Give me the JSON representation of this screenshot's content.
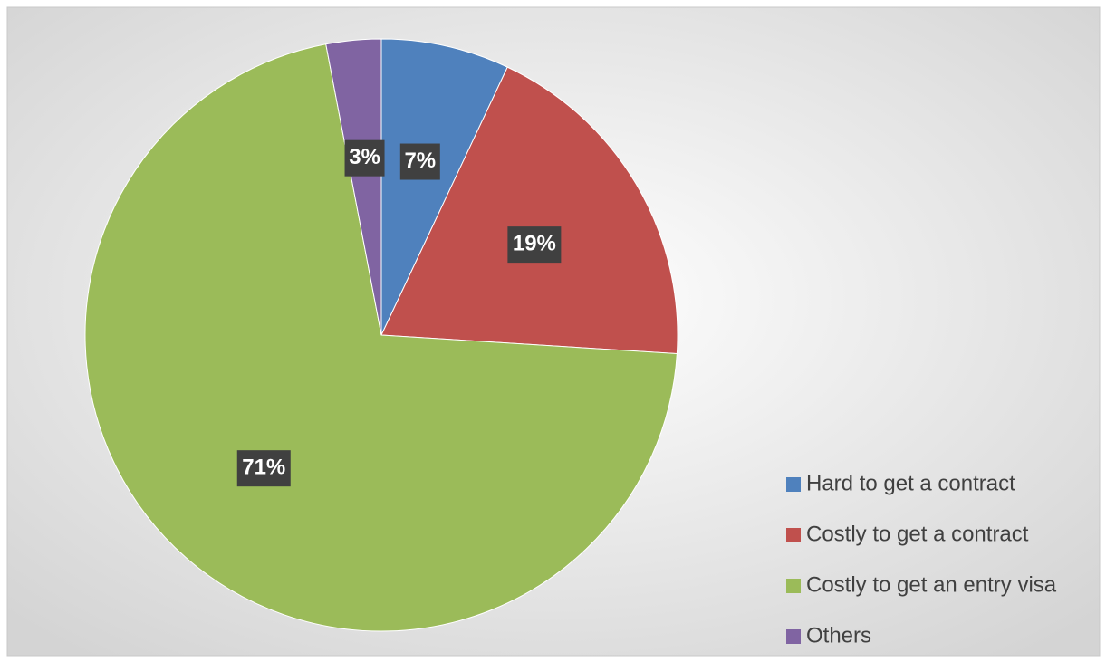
{
  "chart_data": {
    "type": "pie",
    "categories": [
      "Hard to get a contract",
      "Costly to get a contract",
      "Costly to get an entry visa",
      "Others"
    ],
    "values": [
      7,
      19,
      71,
      3
    ],
    "value_labels": [
      "7%",
      "19%",
      "71%",
      "3%"
    ],
    "colors": [
      "#4f81bd",
      "#c0504d",
      "#9bbb59",
      "#8064a2"
    ],
    "legend": "bottom-right"
  }
}
